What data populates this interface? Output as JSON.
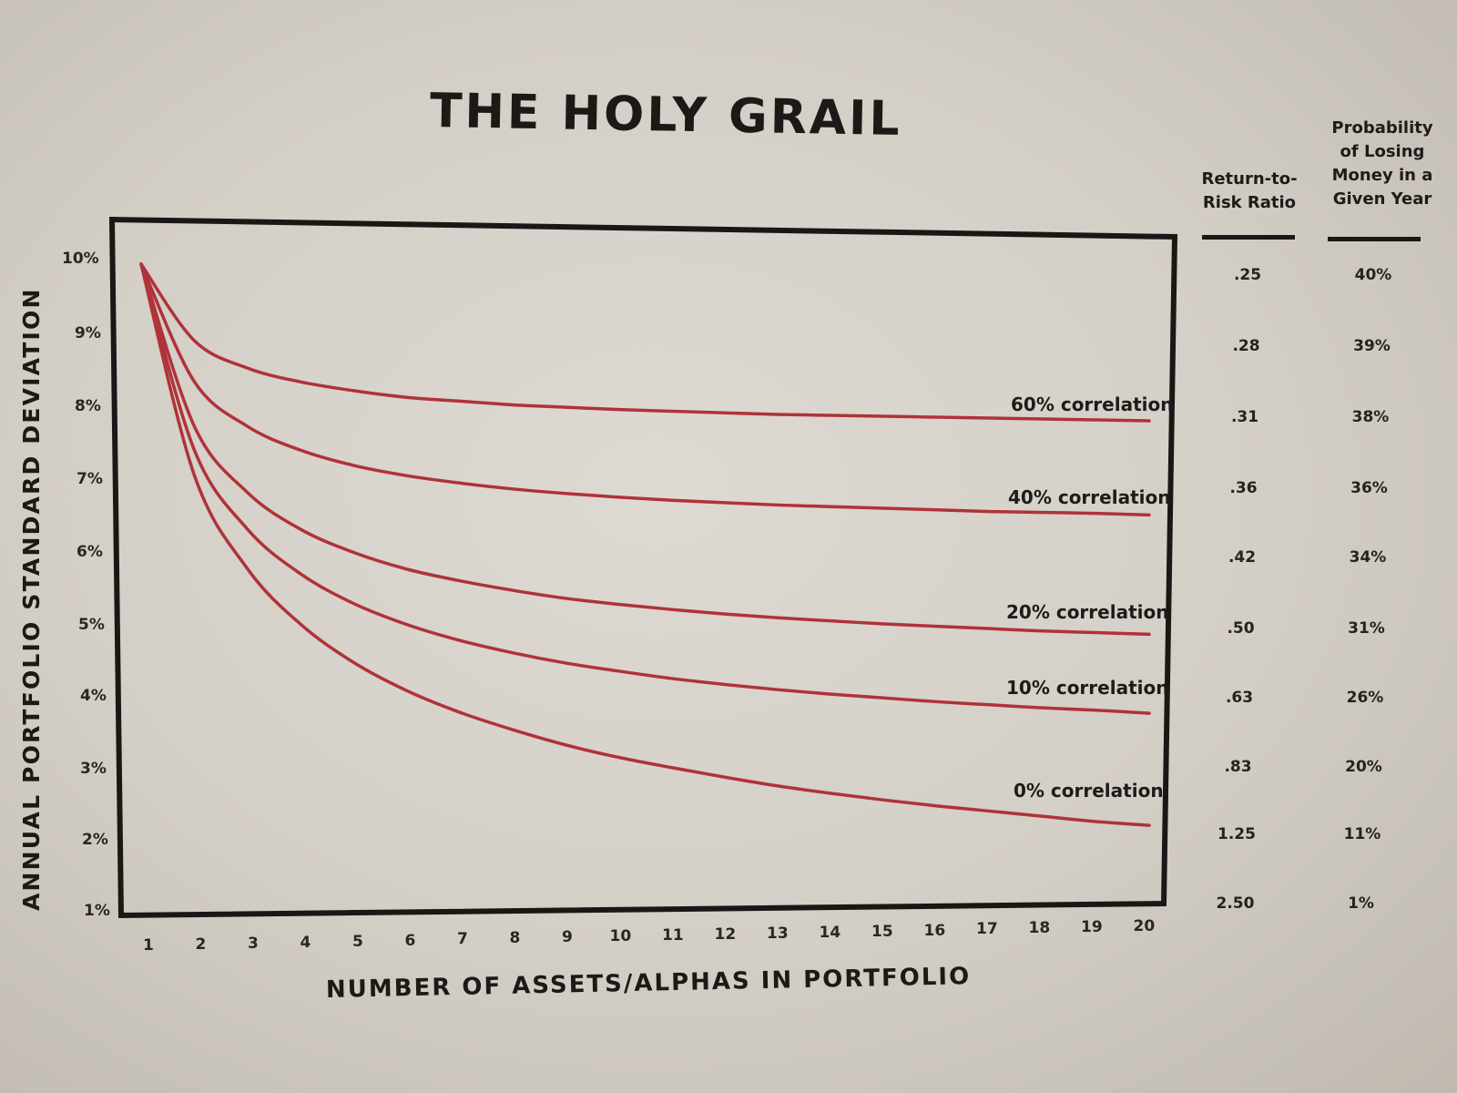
{
  "chart_data": {
    "type": "line",
    "title": "THE HOLY GRAIL",
    "xlabel": "NUMBER OF ASSETS/ALPHAS IN PORTFOLIO",
    "ylabel": "ANNUAL PORTFOLIO STANDARD DEVIATION",
    "x": [
      1,
      2,
      3,
      4,
      5,
      6,
      7,
      8,
      9,
      10,
      11,
      12,
      13,
      14,
      15,
      16,
      17,
      18,
      19,
      20
    ],
    "x_tick_labels": [
      "1",
      "2",
      "3",
      "4",
      "5",
      "6",
      "7",
      "8",
      "9",
      "10",
      "11",
      "12",
      "13",
      "14",
      "15",
      "16",
      "17",
      "18",
      "19",
      "20"
    ],
    "y_tick_labels": [
      "10%",
      "9%",
      "8%",
      "7%",
      "6%",
      "5%",
      "4%",
      "3%",
      "2%",
      "1%"
    ],
    "ylim": [
      1,
      10
    ],
    "xlim": [
      1,
      20
    ],
    "grid": false,
    "legend_position": "inline-right",
    "series": [
      {
        "name": "60% correlation",
        "values": [
          10.0,
          8.94,
          8.56,
          8.37,
          8.25,
          8.16,
          8.11,
          8.06,
          8.03,
          8.0,
          7.98,
          7.96,
          7.94,
          7.93,
          7.92,
          7.91,
          7.9,
          7.89,
          7.88,
          7.87
        ]
      },
      {
        "name": "40% correlation",
        "values": [
          10.0,
          8.37,
          7.75,
          7.42,
          7.21,
          7.07,
          6.97,
          6.89,
          6.83,
          6.78,
          6.74,
          6.71,
          6.68,
          6.66,
          6.64,
          6.62,
          6.6,
          6.59,
          6.58,
          6.56
        ]
      },
      {
        "name": "20% correlation",
        "values": [
          10.0,
          7.75,
          6.83,
          6.32,
          6.0,
          5.77,
          5.61,
          5.48,
          5.37,
          5.29,
          5.22,
          5.16,
          5.11,
          5.07,
          5.03,
          5.0,
          4.97,
          4.94,
          4.92,
          4.9
        ]
      },
      {
        "name": "10% correlation",
        "values": [
          10.0,
          7.42,
          6.32,
          5.7,
          5.29,
          5.0,
          4.78,
          4.61,
          4.47,
          4.36,
          4.26,
          4.18,
          4.11,
          4.05,
          4.0,
          3.95,
          3.91,
          3.87,
          3.84,
          3.8
        ]
      },
      {
        "name": "0% correlation",
        "values": [
          10.0,
          7.07,
          5.77,
          5.0,
          4.47,
          4.08,
          3.78,
          3.54,
          3.33,
          3.16,
          3.02,
          2.89,
          2.77,
          2.67,
          2.58,
          2.5,
          2.43,
          2.36,
          2.29,
          2.24
        ]
      }
    ],
    "table": {
      "type": "table",
      "columns": [
        "Return-to-Risk Ratio",
        "Probability of Losing Money in a Given Year"
      ],
      "rows_by_std_dev": [
        {
          "std_dev": "10%",
          "return_to_risk": ".25",
          "prob_loss": "40%"
        },
        {
          "std_dev": "9%",
          "return_to_risk": ".28",
          "prob_loss": "39%"
        },
        {
          "std_dev": "8%",
          "return_to_risk": ".31",
          "prob_loss": "38%"
        },
        {
          "std_dev": "7%",
          "return_to_risk": ".36",
          "prob_loss": "36%"
        },
        {
          "std_dev": "6%",
          "return_to_risk": ".42",
          "prob_loss": "34%"
        },
        {
          "std_dev": "5%",
          "return_to_risk": ".50",
          "prob_loss": "31%"
        },
        {
          "std_dev": "4%",
          "return_to_risk": ".63",
          "prob_loss": "26%"
        },
        {
          "std_dev": "3%",
          "return_to_risk": ".83",
          "prob_loss": "20%"
        },
        {
          "std_dev": "2%",
          "return_to_risk": "1.25",
          "prob_loss": "11%"
        },
        {
          "std_dev": "1%",
          "return_to_risk": "2.50",
          "prob_loss": "1%"
        }
      ]
    },
    "colors": {
      "lines": "#b0323a",
      "axes": "#1a1716",
      "background": "#d8d4cd"
    }
  },
  "table_headers": {
    "ratio_line1": "Return-to-",
    "ratio_line2": "Risk Ratio",
    "prob_line1": "Probability",
    "prob_line2": "of Losing",
    "prob_line3": "Money in a",
    "prob_line4": "Given Year"
  }
}
